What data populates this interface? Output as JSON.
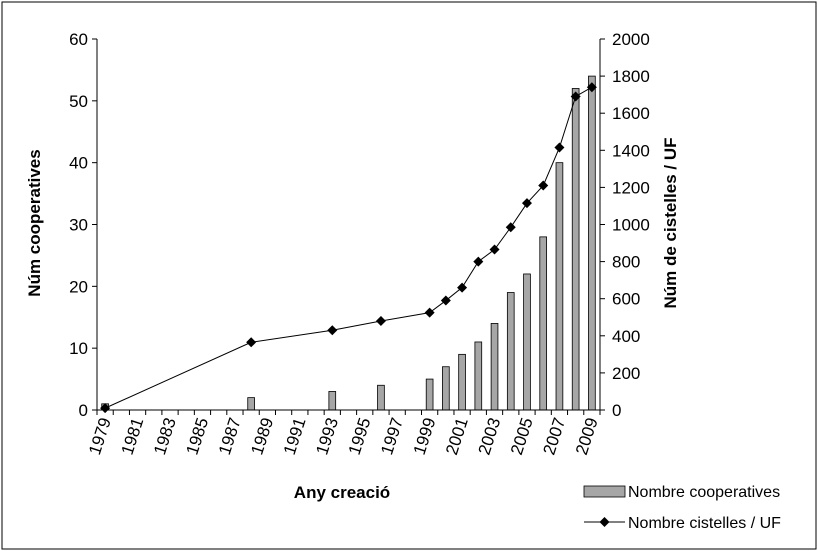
{
  "chart_data": {
    "type": "bar",
    "x_tick_labels": [
      "1979",
      "1981",
      "1983",
      "1985",
      "1987",
      "1989",
      "1991",
      "1993",
      "1995",
      "1997",
      "1999",
      "2001",
      "2003",
      "2005",
      "2007",
      "2009"
    ],
    "xlabel": "Any creació",
    "ylabel_left": "Núm cooperatives",
    "ylabel_right": "Núm de cistelles / UF",
    "ylim_left": [
      0,
      60
    ],
    "yticks_left": [
      "0",
      "10",
      "20",
      "30",
      "40",
      "50",
      "60"
    ],
    "ylim_right": [
      0,
      2000
    ],
    "yticks_right": [
      "0",
      "200",
      "400",
      "600",
      "800",
      "1000",
      "1200",
      "1400",
      "1600",
      "1800",
      "2000"
    ],
    "grid": false,
    "legend_position": "bottom-right",
    "series": [
      {
        "name": "Nombre cooperatives",
        "type": "bar",
        "axis": "left",
        "color": "#a6a6a6",
        "points": [
          {
            "year": 1979,
            "value": 1
          },
          {
            "year": 1988,
            "value": 2
          },
          {
            "year": 1993,
            "value": 3
          },
          {
            "year": 1996,
            "value": 4
          },
          {
            "year": 1999,
            "value": 5
          },
          {
            "year": 2000,
            "value": 7
          },
          {
            "year": 2001,
            "value": 9
          },
          {
            "year": 2002,
            "value": 11
          },
          {
            "year": 2003,
            "value": 14
          },
          {
            "year": 2004,
            "value": 19
          },
          {
            "year": 2005,
            "value": 22
          },
          {
            "year": 2006,
            "value": 28
          },
          {
            "year": 2007,
            "value": 40
          },
          {
            "year": 2008,
            "value": 52
          },
          {
            "year": 2009,
            "value": 54
          }
        ]
      },
      {
        "name": "Nombre cistelles / UF",
        "type": "line",
        "axis": "right",
        "color": "#000000",
        "points": [
          {
            "year": 1979,
            "value": 10
          },
          {
            "year": 1988,
            "value": 365
          },
          {
            "year": 1993,
            "value": 430
          },
          {
            "year": 1996,
            "value": 480
          },
          {
            "year": 1999,
            "value": 525
          },
          {
            "year": 2000,
            "value": 590
          },
          {
            "year": 2001,
            "value": 660
          },
          {
            "year": 2002,
            "value": 800
          },
          {
            "year": 2003,
            "value": 865
          },
          {
            "year": 2004,
            "value": 985
          },
          {
            "year": 2005,
            "value": 1115
          },
          {
            "year": 2006,
            "value": 1210
          },
          {
            "year": 2007,
            "value": 1415
          },
          {
            "year": 2008,
            "value": 1690
          },
          {
            "year": 2009,
            "value": 1740
          }
        ]
      }
    ]
  }
}
